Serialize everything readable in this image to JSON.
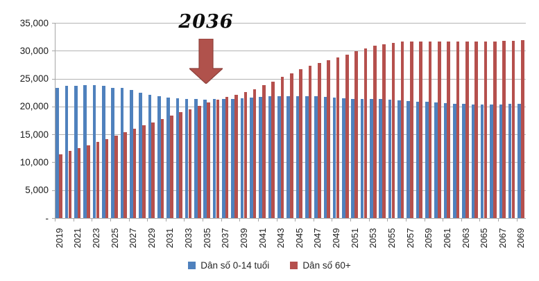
{
  "chart_data": {
    "type": "bar",
    "title": "",
    "x": [
      2019,
      2020,
      2021,
      2022,
      2023,
      2024,
      2025,
      2026,
      2027,
      2028,
      2029,
      2030,
      2031,
      2032,
      2033,
      2034,
      2035,
      2036,
      2037,
      2038,
      2039,
      2040,
      2041,
      2042,
      2043,
      2044,
      2045,
      2046,
      2047,
      2048,
      2049,
      2050,
      2051,
      2052,
      2053,
      2054,
      2055,
      2056,
      2057,
      2058,
      2059,
      2060,
      2061,
      2062,
      2063,
      2064,
      2065,
      2066,
      2067,
      2068,
      2069
    ],
    "x_tick_labels": [
      "2019",
      "2021",
      "2023",
      "2025",
      "2027",
      "2029",
      "2031",
      "2033",
      "2035",
      "2037",
      "2039",
      "2041",
      "2043",
      "2045",
      "2047",
      "2049",
      "2051",
      "2053",
      "2055",
      "2057",
      "2059",
      "2061",
      "2063",
      "2065",
      "2067",
      "2069"
    ],
    "y_tick_labels_bottom_to_top": [
      "-",
      "5,000",
      "10,000",
      "15,000",
      "20,000",
      "25,000",
      "30,000",
      "35,000"
    ],
    "ylim": [
      0,
      35000
    ],
    "gridline_step": 5000,
    "grid": true,
    "legend_position": "bottom",
    "series": [
      {
        "name": "Dân số 0-14 tuổi",
        "color": "#4f81bd",
        "values": [
          23400,
          23650,
          23700,
          23850,
          23800,
          23650,
          23400,
          23300,
          22950,
          22500,
          22100,
          21850,
          21600,
          21500,
          21400,
          21300,
          21250,
          21300,
          21300,
          21350,
          21450,
          21550,
          21700,
          21800,
          21850,
          21900,
          21900,
          21850,
          21800,
          21700,
          21600,
          21500,
          21400,
          21350,
          21350,
          21300,
          21200,
          21100,
          21000,
          20850,
          20800,
          20700,
          20600,
          20500,
          20450,
          20350,
          20300,
          20300,
          20350,
          20450,
          20500
        ]
      },
      {
        "name": "Dân số 60+",
        "color": "#b5504d",
        "values": [
          11400,
          12000,
          12550,
          13100,
          13600,
          14200,
          14800,
          15400,
          16000,
          16600,
          17150,
          17750,
          18350,
          18950,
          19550,
          20100,
          20700,
          21250,
          21700,
          22100,
          22550,
          23100,
          23800,
          24500,
          25300,
          26000,
          26700,
          27300,
          27850,
          28350,
          28850,
          29350,
          29900,
          30400,
          30900,
          31200,
          31450,
          31600,
          31700,
          31700,
          31650,
          31700,
          31700,
          31650,
          31650,
          31700,
          31700,
          31700,
          31750,
          31800,
          31850
        ]
      }
    ],
    "annotation": {
      "text": "2036",
      "year": 2036,
      "arrow": "down",
      "arrow_fill": "#b0524c",
      "arrow_border": "#8e423d"
    }
  }
}
